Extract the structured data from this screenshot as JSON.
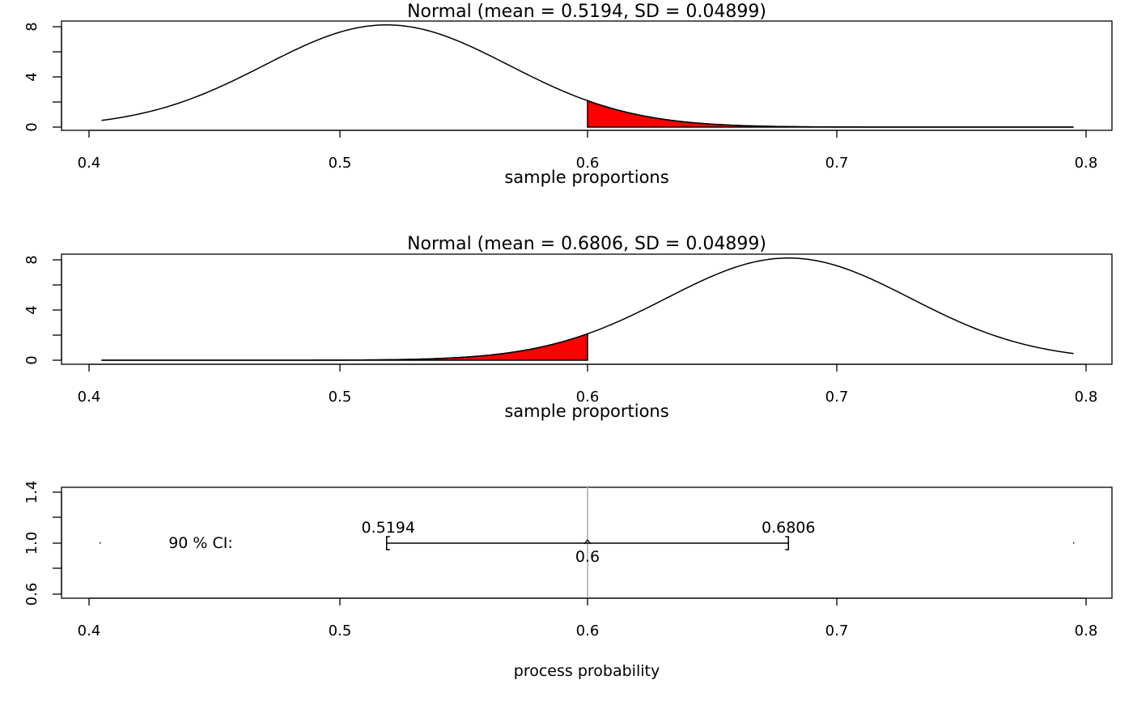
{
  "chart_data": [
    {
      "type": "area",
      "title": "Normal (mean = 0.5194, SD = 0.04899)",
      "xlabel": "sample proportions",
      "ylabel": "",
      "mean": 0.5194,
      "sd": 0.04899,
      "xlim": [
        0.405,
        0.795
      ],
      "ylim": [
        0,
        8.5
      ],
      "x_ticks": [
        "0.4",
        "0.5",
        "0.6",
        "0.7",
        "0.8"
      ],
      "y_ticks": [
        "0",
        "4",
        "8"
      ],
      "shade_from": 0.6,
      "shade_to": 0.795,
      "shade_color": "#ff0000",
      "grid": false
    },
    {
      "type": "area",
      "title": "Normal (mean = 0.6806, SD = 0.04899)",
      "xlabel": "sample proportions",
      "ylabel": "",
      "mean": 0.6806,
      "sd": 0.04899,
      "xlim": [
        0.405,
        0.795
      ],
      "ylim": [
        0,
        8.5
      ],
      "x_ticks": [
        "0.4",
        "0.5",
        "0.6",
        "0.7",
        "0.8"
      ],
      "y_ticks": [
        "0",
        "4",
        "8"
      ],
      "shade_from": 0.405,
      "shade_to": 0.6,
      "shade_color": "#ff0000",
      "grid": false
    },
    {
      "type": "interval",
      "title": "",
      "xlabel": "process probability",
      "ylabel": "",
      "ci_label": "90 % CI:",
      "lower": 0.5194,
      "upper": 0.6806,
      "lower_label": "0.5194",
      "upper_label": "0.6806",
      "reference": 0.6,
      "reference_label": "0.6",
      "reference_color": "#bebebe",
      "xlim": [
        0.405,
        0.795
      ],
      "ylim": [
        0.6,
        1.4
      ],
      "x_ticks": [
        "0.4",
        "0.5",
        "0.6",
        "0.7",
        "0.8"
      ],
      "y_ticks": [
        "0.6",
        "1.0",
        "1.4"
      ],
      "grid": false
    }
  ]
}
